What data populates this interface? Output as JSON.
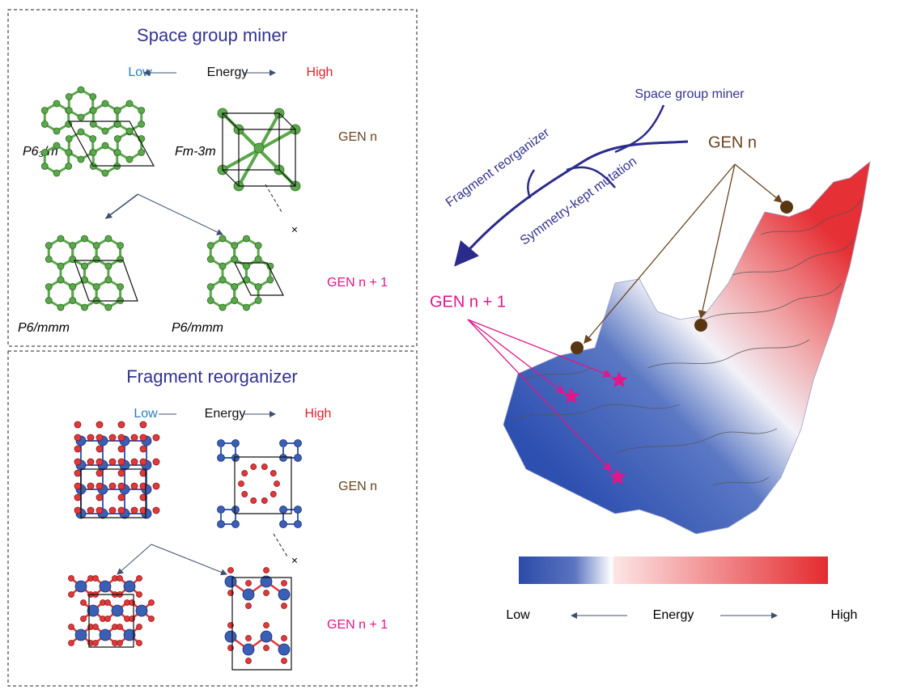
{
  "space_group_miner": {
    "title": "Space group miner",
    "energy": {
      "low": "Low",
      "label": "Energy",
      "high": "High"
    },
    "gen_n": "GEN n",
    "gen_n1": "GEN n + 1",
    "rejected": "×",
    "structures": [
      "P6₃/m",
      "Fm-3m",
      "P6/mmm",
      "P6/mmm"
    ]
  },
  "fragment_reorganizer": {
    "title": "Fragment reorganizer",
    "energy": {
      "low": "Low",
      "label": "Energy",
      "high": "High"
    },
    "gen_n": "GEN n",
    "gen_n1": "GEN n + 1",
    "rejected": "×"
  },
  "landscape": {
    "branches": [
      "Space group miner",
      "Fragment reorganizer",
      "Symmetry-kept mutation"
    ],
    "gen_n": "GEN n",
    "gen_n1": "GEN n + 1",
    "colorbar": {
      "low": "Low",
      "label": "Energy",
      "high": "High"
    }
  }
}
